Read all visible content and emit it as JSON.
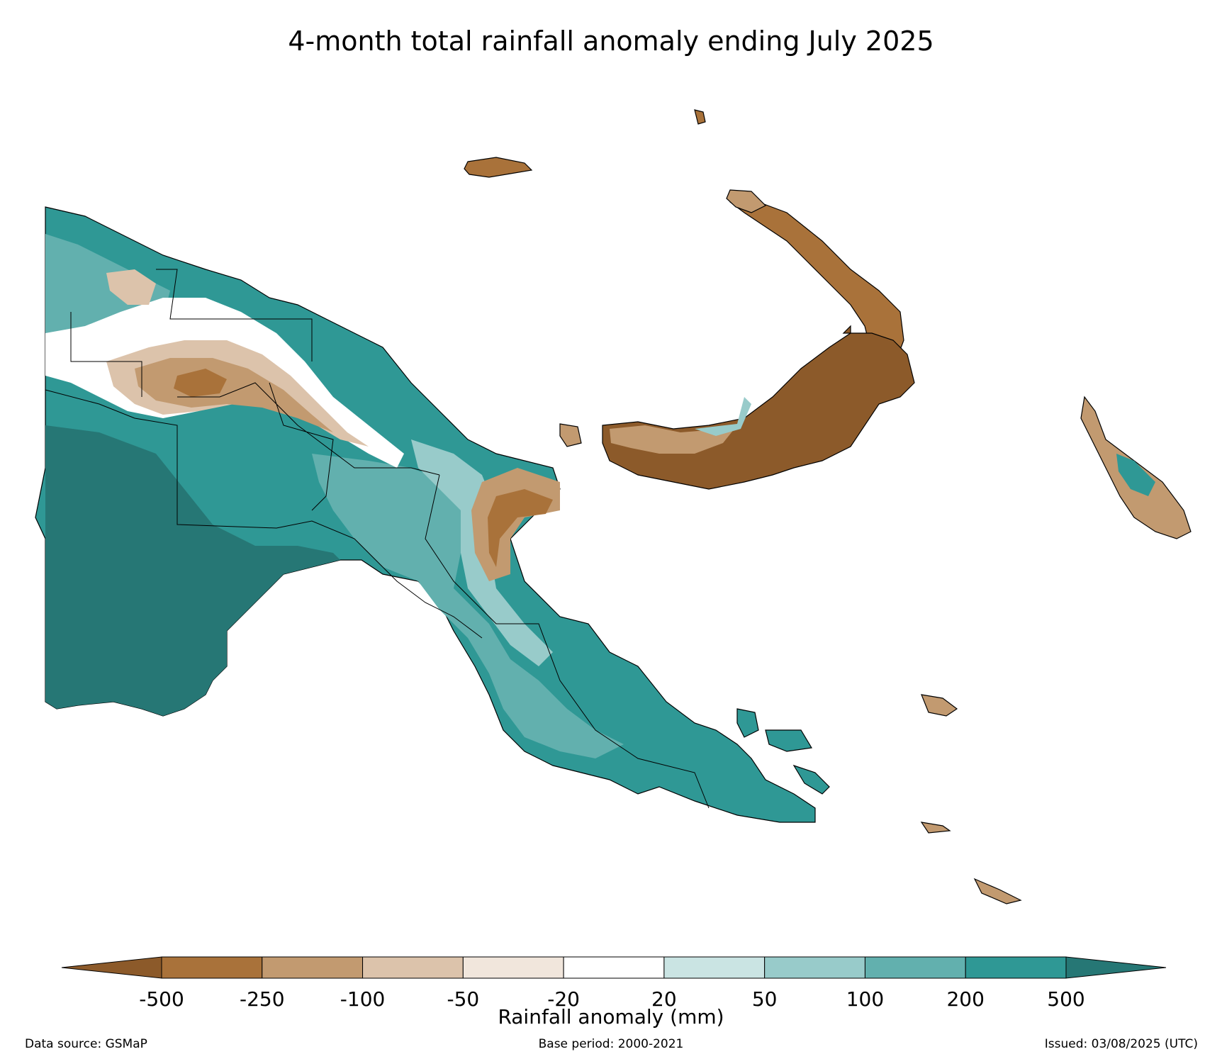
{
  "title": "4-month total rainfall anomaly ending July 2025",
  "colorbar": {
    "label": "Rainfall anomaly (mm)",
    "ticks": [
      "-500",
      "-250",
      "-100",
      "-50",
      "-20",
      "20",
      "50",
      "100",
      "200",
      "500"
    ],
    "colors": {
      "below_min": "#8c5a2a",
      "bins": [
        "#a9723a",
        "#c29a70",
        "#dcc3ab",
        "#f1e6dc",
        "#ffffff",
        "#cae4e3",
        "#98cbca",
        "#62b0ae",
        "#2f9895"
      ],
      "above_max": "#267775"
    }
  },
  "footer": {
    "data_source": "Data source: GSMaP",
    "base_period": "Base period: 2000-2021",
    "issued": "Issued: 03/08/2025 (UTC)"
  }
}
